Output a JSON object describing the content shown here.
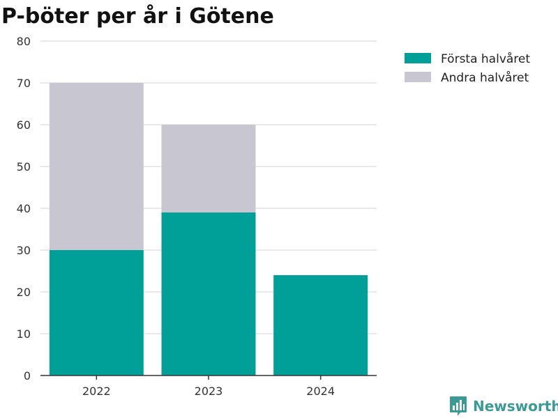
{
  "chart_data": {
    "type": "bar",
    "stacked": true,
    "title": "P-böter per år i Götene",
    "categories": [
      "2022",
      "2023",
      "2024"
    ],
    "series": [
      {
        "name": "Första halvåret",
        "values": [
          30,
          39,
          24
        ],
        "color": "#00a098"
      },
      {
        "name": "Andra halvåret",
        "values": [
          40,
          21,
          0
        ],
        "color": "#c8c7d1"
      }
    ],
    "ylim": [
      0,
      80
    ],
    "yticks": [
      0,
      10,
      20,
      30,
      40,
      50,
      60,
      70,
      80
    ],
    "grid": true,
    "legend_position": "top-right"
  },
  "brand": {
    "name": "Newsworthy",
    "icon": "bar-chart-logo-icon",
    "color": "#3a9b95"
  }
}
